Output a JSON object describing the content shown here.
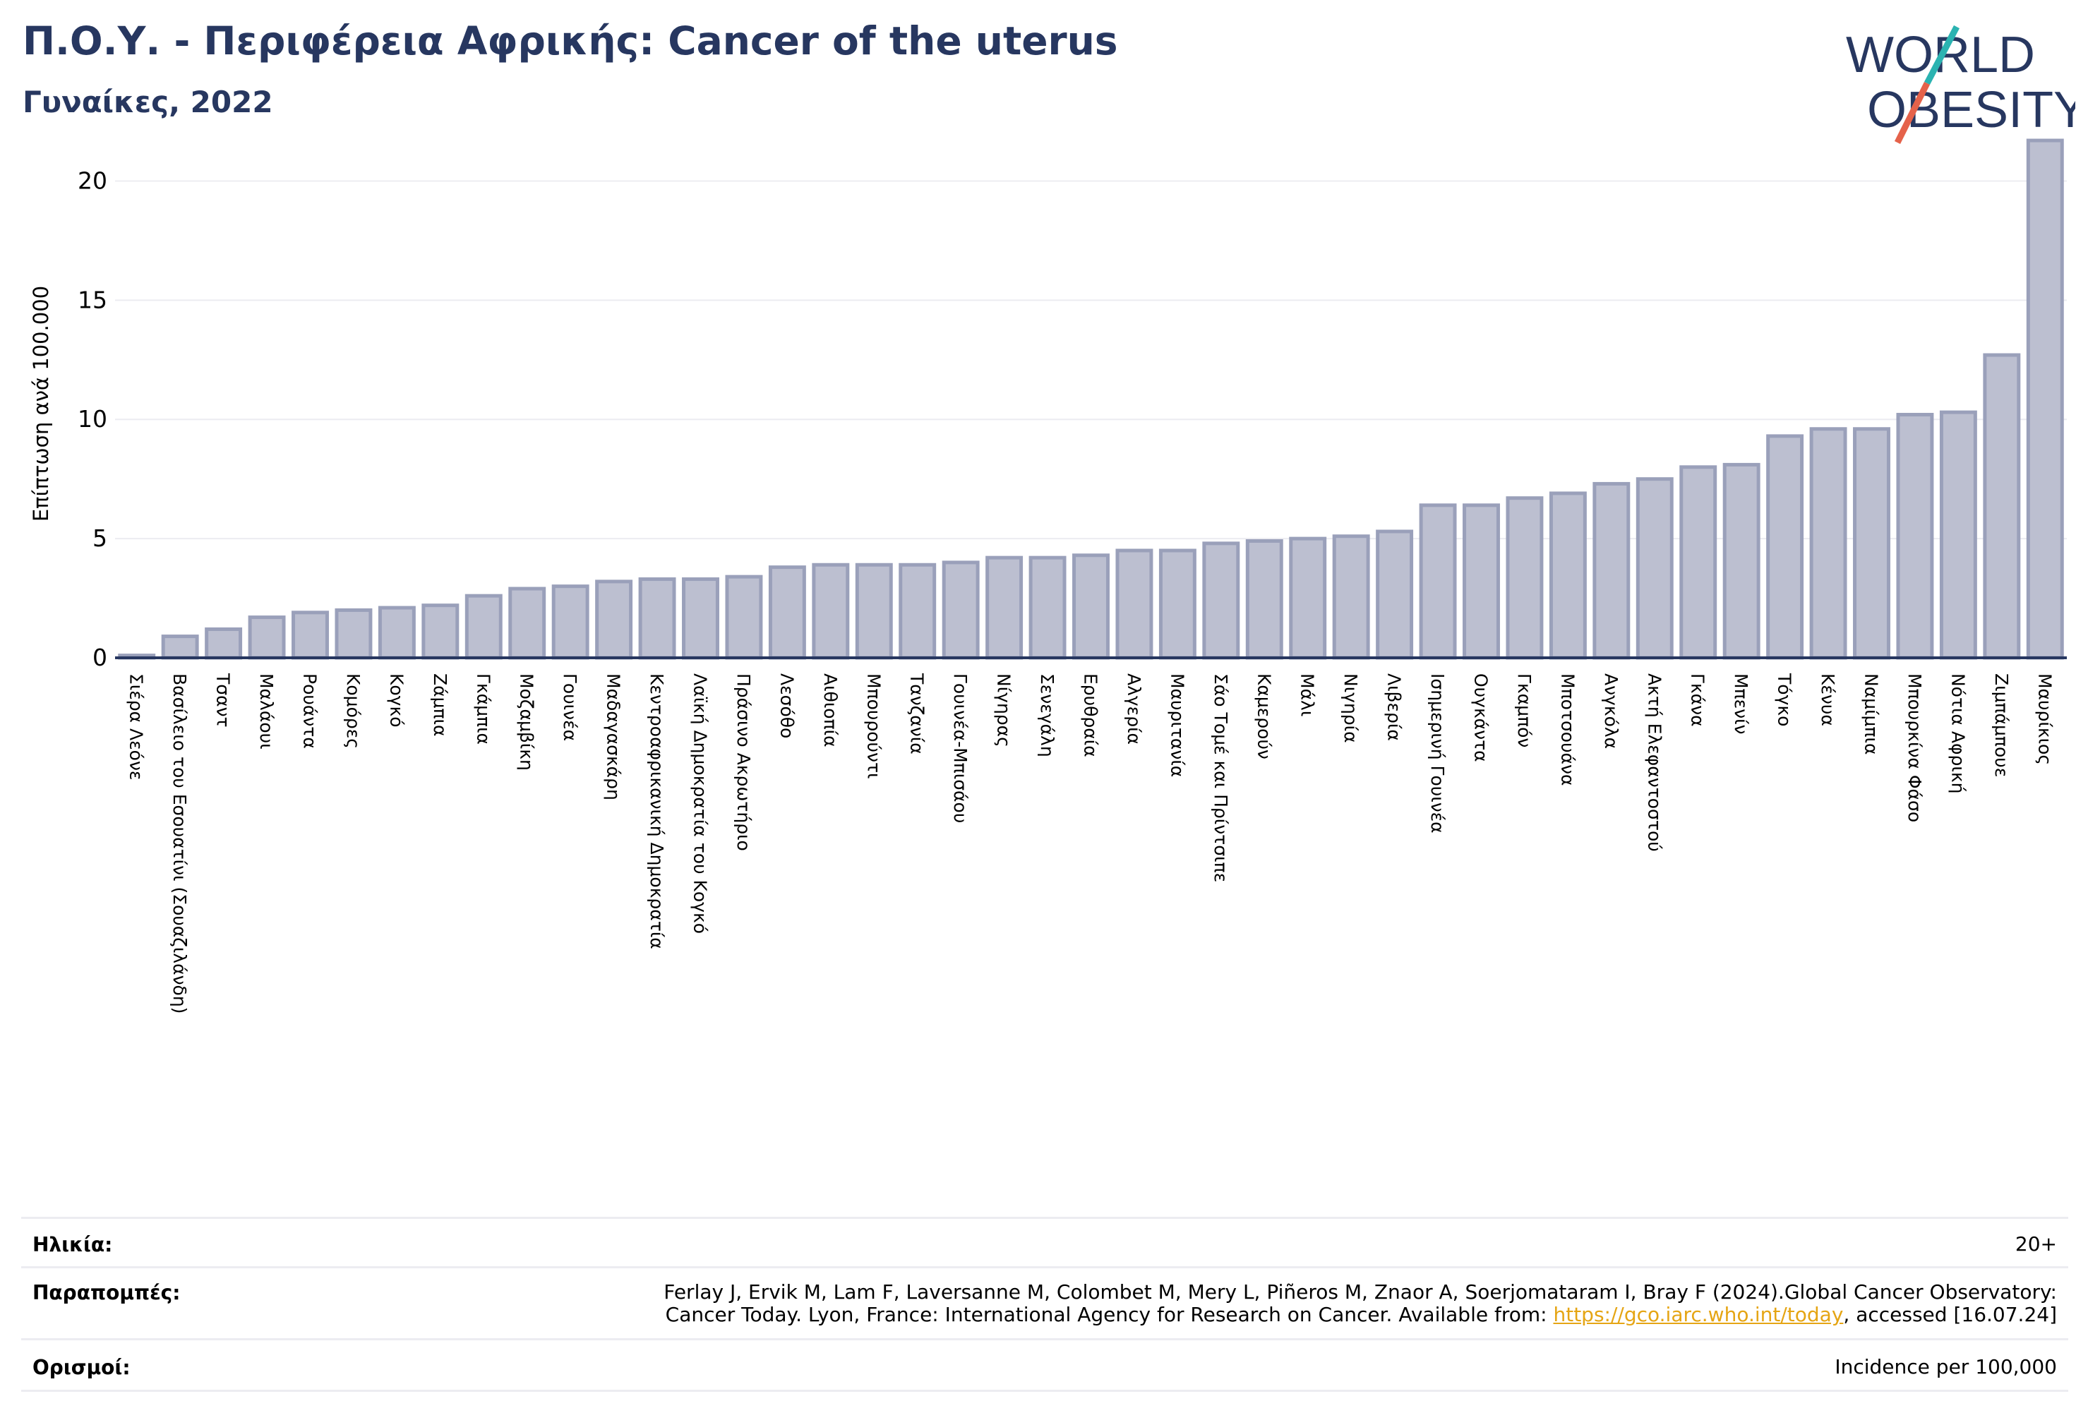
{
  "header": {
    "title": "Π.Ο.Υ. - Περιφέρεια Αφρικής: Cancer of the uterus",
    "subtitle": "Γυναίκες, 2022"
  },
  "logo": {
    "line1": "WORLD",
    "line2": "OBESITY",
    "text_color": "#273760",
    "slash_color_top": "#2bb3b1",
    "slash_color_bottom": "#e5624a"
  },
  "colors": {
    "bar_fill": "#bcbfd0",
    "bar_stroke": "#9aa0ba",
    "axis": "#273760",
    "grid": "#ececf1"
  },
  "chart_data": {
    "type": "bar",
    "ylabel": "Επίπτωση ανά 100.000",
    "ylim": [
      0,
      22.5
    ],
    "yticks": [
      0,
      5,
      10,
      15,
      20
    ],
    "grid": true,
    "categories": [
      "Σιέρα Λεόνε",
      "Βασίλειο του Εσουατίνι (Σουαζιλάνδη)",
      "Τσαντ",
      "Μαλάουι",
      "Ρουάντα",
      "Κομόρες",
      "Κογκό",
      "Ζάμπια",
      "Γκάμπια",
      "Μοζαμβίκη",
      "Γουινέα",
      "Μαδαγασκάρη",
      "Κεντροαφρικανική Δημοκρατία",
      "Λαϊκή Δημοκρατία του Κογκό",
      "Πράσινο Ακρωτήριο",
      "Λεσόθο",
      "Αιθιοπία",
      "Μπουρούντι",
      "Τανζανία",
      "Γουινέα-Μπισάου",
      "Νίγηρας",
      "Σενεγάλη",
      "Ερυθραία",
      "Αλγερία",
      "Μαυριτανία",
      "Σάο Τομέ και Πρίντσιπε",
      "Καμερούν",
      "Μάλι",
      "Νιγηρία",
      "Λιβερία",
      "Ισημερινή Γουινέα",
      "Ουγκάντα",
      "Γκαμπόν",
      "Μποτσουάνα",
      "Ανγκόλα",
      "Ακτή Ελεφαντοστού",
      "Γκάνα",
      "Μπενίν",
      "Τόγκο",
      "Κένυα",
      "Ναμίμπια",
      "Μπουρκίνα Φάσο",
      "Νότια Αφρική",
      "Ζιμπάμπουε",
      "Μαυρίκιος"
    ],
    "values": [
      0.1,
      0.9,
      1.2,
      1.7,
      1.9,
      2.0,
      2.1,
      2.2,
      2.6,
      2.9,
      3.0,
      3.2,
      3.3,
      3.3,
      3.4,
      3.8,
      3.9,
      3.9,
      3.9,
      4.0,
      4.2,
      4.2,
      4.3,
      4.5,
      4.5,
      4.8,
      4.9,
      5.0,
      5.1,
      5.3,
      6.4,
      6.4,
      6.7,
      6.9,
      7.3,
      7.5,
      8.0,
      8.1,
      9.3,
      9.6,
      9.6,
      10.2,
      10.3,
      12.7,
      21.7
    ]
  },
  "info": {
    "age_label": "Ηλικία:",
    "age_value": "20+",
    "refs_label": "Παραπομπές:",
    "refs_line1": "Ferlay J, Ervik M, Lam F, Laversanne M, Colombet M, Mery L, Piñeros M, Znaor A, Soerjomataram I, Bray F (2024).Global Cancer Observatory:",
    "refs_line2_prefix": "Cancer Today. Lyon, France: International Agency for Research on Cancer. Available from: ",
    "refs_link": "https://gco.iarc.who.int/today",
    "refs_line2_suffix": ", accessed [16.07.24]",
    "defs_label": "Ορισμοί:",
    "defs_value": "Incidence per 100,000"
  }
}
